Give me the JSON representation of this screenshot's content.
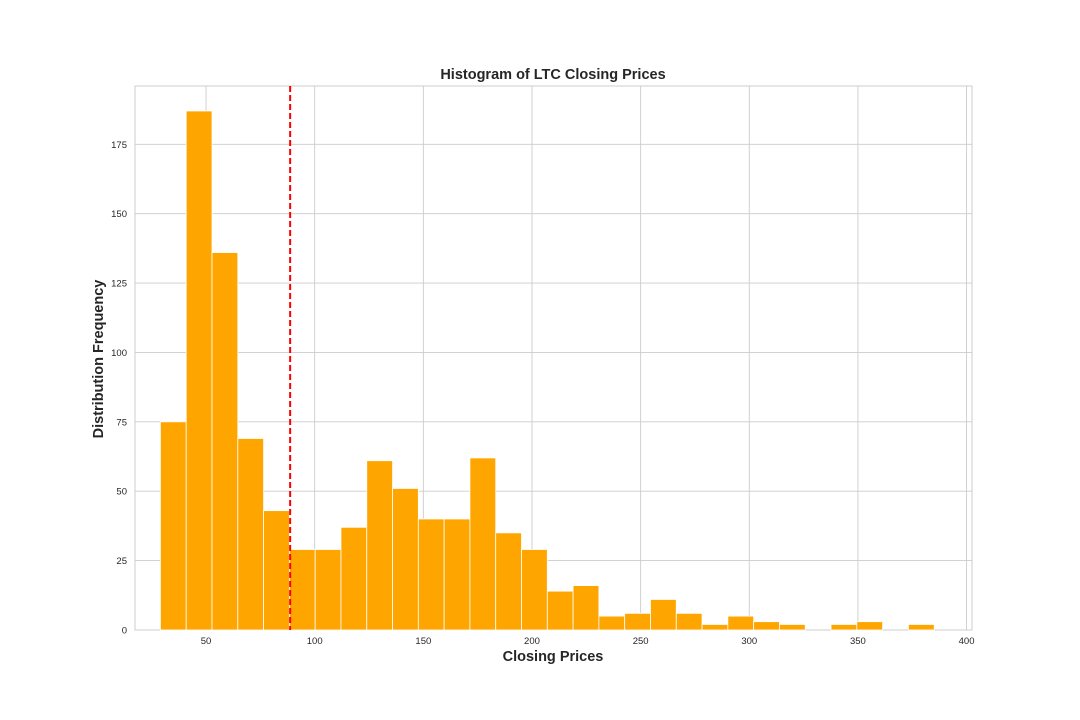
{
  "chart_data": {
    "type": "bar",
    "title": "Histogram of LTC Closing Prices",
    "xlabel": "Closing Prices",
    "ylabel": "Distribution Frequency",
    "xlim": [
      17.3,
      402.5
    ],
    "ylim": [
      0,
      196
    ],
    "xticks": [
      50,
      100,
      150,
      200,
      250,
      300,
      350,
      400
    ],
    "yticks": [
      0,
      25,
      50,
      75,
      100,
      125,
      150,
      175
    ],
    "bin_start": 29.0,
    "bin_width": 11.87,
    "counts": [
      75,
      187,
      136,
      69,
      43,
      29,
      29,
      37,
      61,
      51,
      40,
      40,
      62,
      35,
      29,
      14,
      16,
      5,
      6,
      11,
      6,
      2,
      5,
      3,
      2,
      0,
      2,
      3,
      0,
      2
    ],
    "bar_color": "#ffa500",
    "reference_line": {
      "x": 88.7,
      "color": "#ff0000",
      "style": "dashed"
    },
    "grid": true,
    "legend": "none"
  }
}
